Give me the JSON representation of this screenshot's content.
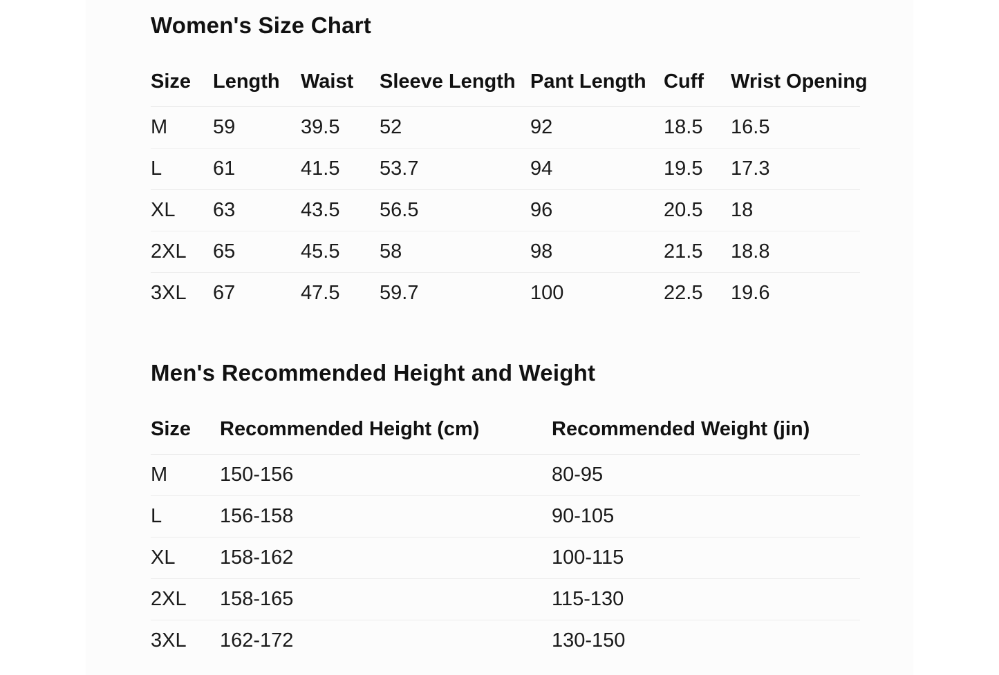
{
  "page": {
    "background_color": "#ffffff",
    "content_background_color": "#fcfcfc",
    "text_color": "#1a1a1a",
    "divider_color": "#ededed"
  },
  "womens_size_chart": {
    "title": "Women's Size Chart",
    "columns": [
      "Size",
      "Length",
      "Waist",
      "Sleeve Length",
      "Pant Length",
      "Cuff",
      "Wrist Opening"
    ],
    "rows": [
      [
        "M",
        "59",
        "39.5",
        "52",
        "92",
        "18.5",
        "16.5"
      ],
      [
        "L",
        "61",
        "41.5",
        "53.7",
        "94",
        "19.5",
        "17.3"
      ],
      [
        "XL",
        "63",
        "43.5",
        "56.5",
        "96",
        "20.5",
        "18"
      ],
      [
        "2XL",
        "65",
        "45.5",
        "58",
        "98",
        "21.5",
        "18.8"
      ],
      [
        "3XL",
        "67",
        "47.5",
        "59.7",
        "100",
        "22.5",
        "19.6"
      ]
    ]
  },
  "mens_height_weight": {
    "title": "Men's Recommended Height and Weight",
    "columns": [
      "Size",
      "Recommended Height (cm)",
      "Recommended Weight (jin)"
    ],
    "rows": [
      [
        "M",
        "150-156",
        "80-95"
      ],
      [
        "L",
        "156-158",
        "90-105"
      ],
      [
        "XL",
        "158-162",
        "100-115"
      ],
      [
        "2XL",
        "158-165",
        "115-130"
      ],
      [
        "3XL",
        "162-172",
        "130-150"
      ]
    ]
  }
}
